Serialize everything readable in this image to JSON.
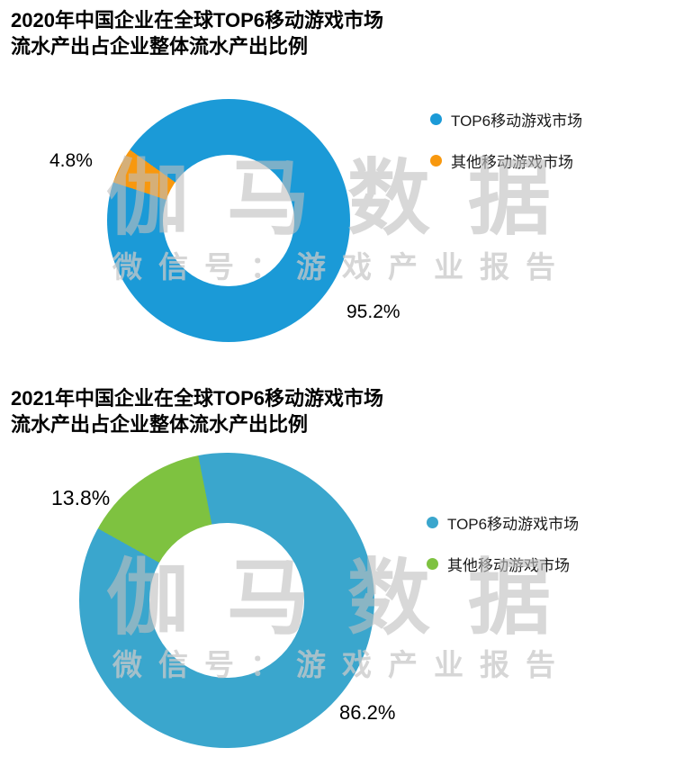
{
  "watermark": {
    "main": "伽马数据",
    "sub": "微信号：游戏产业报告"
  },
  "chart_data": [
    {
      "type": "pie",
      "donut": true,
      "title": "2020年中国企业在全球TOP6移动游戏市场流水产出占企业整体流水产出比例",
      "title_lines": [
        "2020年中国企业在全球TOP6移动游戏市场",
        "流水产出占企业整体流水产出比例"
      ],
      "categories": [
        "TOP6移动游戏市场",
        "其他移动游戏市场"
      ],
      "values": [
        95.2,
        4.8
      ],
      "value_labels": [
        "95.2%",
        "4.8%"
      ],
      "colors": [
        "#1b9ad7",
        "#f8980e"
      ],
      "legend_position": "right",
      "minor_center_deg": 297
    },
    {
      "type": "pie",
      "donut": true,
      "title": "2021年中国企业在全球TOP6移动游戏市场流水产出占企业整体流水产出比例",
      "title_lines": [
        "2021年中国企业在全球TOP6移动游戏市场",
        "流水产出占企业整体流水产出比例"
      ],
      "categories": [
        "TOP6移动游戏市场",
        "其他移动游戏市场"
      ],
      "values": [
        86.2,
        13.8
      ],
      "value_labels": [
        "86.2%",
        "13.8%"
      ],
      "colors": [
        "#3aa6cd",
        "#7ec240"
      ],
      "legend_position": "right",
      "minor_center_deg": 324
    }
  ]
}
